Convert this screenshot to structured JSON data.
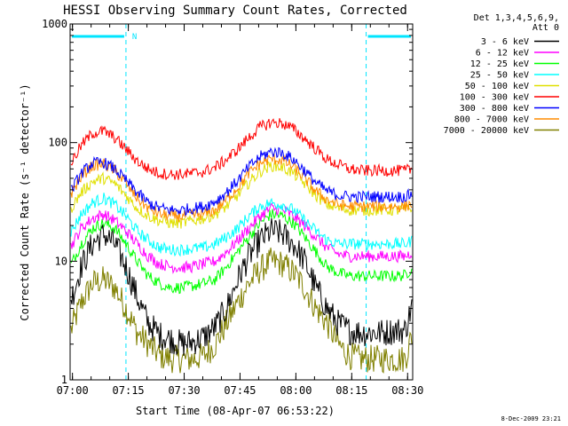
{
  "chart_data": {
    "type": "line",
    "title": "HESSI Observing Summary Count Rates, Corrected",
    "xlabel": "Start Time (08-Apr-07 06:53:22)",
    "ylabel": "Corrected Count Rate (s⁻¹ detector⁻¹)",
    "yscale": "log",
    "ylim": [
      1,
      1000
    ],
    "xlim_minutes": [
      6.0,
      98.0
    ],
    "x_ticks": [
      "07:00",
      "07:15",
      "07:30",
      "07:45",
      "08:00",
      "08:15",
      "08:30"
    ],
    "y_ticks": [
      "1",
      "10",
      "100",
      "1000"
    ],
    "legend_header": [
      "Det 1,3,4,5,6,9,",
      "Att 0"
    ],
    "legend_position": "right",
    "stamp": "8-Dec-2009 23:21",
    "night_flag_label": "N",
    "night_intervals": [
      [
        6.0,
        21.0
      ],
      [
        85.5,
        98.0
      ]
    ],
    "series": [
      {
        "name": "3 - 6 keV",
        "color": "#000000",
        "x": [
          6,
          9,
          12,
          15,
          18,
          21,
          24,
          27,
          30,
          33,
          36,
          39,
          42,
          45,
          48,
          51,
          54,
          57,
          60,
          63,
          66,
          69,
          72,
          75,
          78,
          81,
          84,
          87,
          90,
          93,
          96,
          98
        ],
        "y": [
          4.5,
          9,
          14,
          17,
          14,
          9,
          5,
          3,
          2.4,
          2.2,
          2.0,
          2.1,
          2.3,
          2.8,
          4,
          7,
          11,
          15,
          18,
          17,
          14,
          10,
          6,
          4,
          3,
          2.6,
          2.5,
          2.5,
          2.5,
          2.6,
          2.6,
          4.5
        ]
      },
      {
        "name": "6 - 12 keV",
        "color": "#ff00ff",
        "x": [
          6,
          9,
          12,
          15,
          18,
          21,
          24,
          27,
          30,
          33,
          36,
          39,
          42,
          45,
          48,
          51,
          54,
          57,
          60,
          63,
          66,
          69,
          72,
          75,
          78,
          81,
          84,
          87,
          90,
          93,
          96,
          98
        ],
        "y": [
          13,
          19,
          23,
          25,
          22,
          18,
          14,
          11,
          9.5,
          9,
          8.8,
          9,
          9.5,
          10,
          12,
          15,
          19,
          24,
          28,
          27,
          24,
          20,
          16,
          13,
          11.5,
          11,
          11,
          11,
          11,
          11,
          11,
          12
        ]
      },
      {
        "name": "12 - 25 keV",
        "color": "#00ff00",
        "x": [
          6,
          9,
          12,
          15,
          18,
          21,
          24,
          27,
          30,
          33,
          36,
          39,
          42,
          45,
          48,
          51,
          54,
          57,
          60,
          63,
          66,
          69,
          72,
          75,
          78,
          81,
          84,
          87,
          90,
          93,
          96,
          98
        ],
        "y": [
          9,
          14,
          19,
          21,
          19,
          14,
          10,
          7.5,
          6.5,
          6,
          6,
          6.2,
          6.5,
          7,
          9,
          12,
          16,
          21,
          25,
          24,
          21,
          16,
          12,
          9,
          8,
          7.5,
          7.5,
          7.5,
          7.5,
          7.5,
          7.6,
          9
        ]
      },
      {
        "name": "25 - 50 keV",
        "color": "#00ffff",
        "x": [
          6,
          9,
          12,
          15,
          18,
          21,
          24,
          27,
          30,
          33,
          36,
          39,
          42,
          45,
          48,
          51,
          54,
          57,
          60,
          63,
          66,
          69,
          72,
          75,
          78,
          81,
          84,
          87,
          90,
          93,
          96,
          98
        ],
        "y": [
          17,
          25,
          31,
          34,
          30,
          24,
          18,
          15,
          13,
          12.5,
          12.5,
          12.8,
          13,
          14,
          16,
          19,
          24,
          29,
          31,
          30,
          27,
          22,
          18,
          15,
          14,
          14,
          14,
          14,
          14,
          14,
          14,
          15
        ]
      },
      {
        "name": "50 - 100 keV",
        "color": "#e0e000",
        "x": [
          6,
          9,
          12,
          15,
          18,
          21,
          24,
          27,
          30,
          33,
          36,
          39,
          42,
          45,
          48,
          51,
          54,
          57,
          60,
          63,
          66,
          69,
          72,
          75,
          78,
          81,
          84,
          87,
          90,
          93,
          96,
          98
        ],
        "y": [
          27,
          38,
          47,
          50,
          45,
          36,
          28,
          24,
          22,
          21,
          21,
          22,
          23,
          25,
          29,
          36,
          46,
          57,
          64,
          62,
          55,
          45,
          36,
          30,
          28,
          27,
          27,
          27,
          27,
          27,
          27,
          28
        ]
      },
      {
        "name": "100 - 300 keV",
        "color": "#ff0000",
        "x": [
          6,
          9,
          12,
          15,
          18,
          21,
          24,
          27,
          30,
          33,
          36,
          39,
          42,
          45,
          48,
          51,
          54,
          57,
          60,
          63,
          66,
          69,
          72,
          75,
          78,
          81,
          84,
          87,
          90,
          93,
          96,
          98
        ],
        "y": [
          65,
          95,
          120,
          125,
          110,
          88,
          70,
          60,
          55,
          54,
          54,
          55,
          57,
          62,
          72,
          88,
          110,
          135,
          148,
          145,
          130,
          108,
          88,
          72,
          65,
          60,
          58,
          58,
          58,
          58,
          58,
          60
        ]
      },
      {
        "name": "300 - 800 keV",
        "color": "#0000ff",
        "x": [
          6,
          9,
          12,
          15,
          18,
          21,
          24,
          27,
          30,
          33,
          36,
          39,
          42,
          45,
          48,
          51,
          54,
          57,
          60,
          63,
          66,
          69,
          72,
          75,
          78,
          81,
          84,
          87,
          90,
          93,
          96,
          98
        ],
        "y": [
          38,
          55,
          67,
          68,
          60,
          48,
          38,
          31,
          28,
          27,
          27,
          28,
          29,
          32,
          38,
          48,
          62,
          76,
          84,
          82,
          72,
          58,
          46,
          39,
          36,
          35,
          35,
          35,
          35,
          35,
          35,
          37
        ]
      },
      {
        "name": "800 - 7000 keV",
        "color": "#ff8c00",
        "x": [
          6,
          9,
          12,
          15,
          18,
          21,
          24,
          27,
          30,
          33,
          36,
          39,
          42,
          45,
          48,
          51,
          54,
          57,
          60,
          63,
          66,
          69,
          72,
          75,
          78,
          81,
          84,
          87,
          90,
          93,
          96,
          98
        ],
        "y": [
          36,
          52,
          64,
          66,
          58,
          45,
          34,
          28,
          25,
          24,
          24,
          24.5,
          25,
          27,
          33,
          42,
          55,
          67,
          73,
          71,
          62,
          50,
          39,
          33,
          30,
          29,
          29,
          29,
          29,
          29,
          29,
          31
        ]
      },
      {
        "name": "7000 - 20000 keV",
        "color": "#808000",
        "x": [
          6,
          9,
          12,
          15,
          18,
          21,
          24,
          27,
          30,
          33,
          36,
          39,
          42,
          45,
          48,
          51,
          54,
          57,
          60,
          63,
          66,
          69,
          72,
          75,
          78,
          81,
          84,
          87,
          90,
          93,
          96,
          98
        ],
        "y": [
          2.5,
          4.5,
          6.5,
          7,
          6,
          4,
          2.5,
          2,
          1.6,
          1.5,
          1.5,
          1.5,
          1.6,
          2,
          3,
          4.5,
          6.5,
          8.5,
          10,
          9.5,
          8,
          6,
          4,
          3,
          2,
          1.6,
          1.5,
          1.5,
          1.5,
          1.5,
          1.5,
          2.5
        ]
      }
    ]
  }
}
